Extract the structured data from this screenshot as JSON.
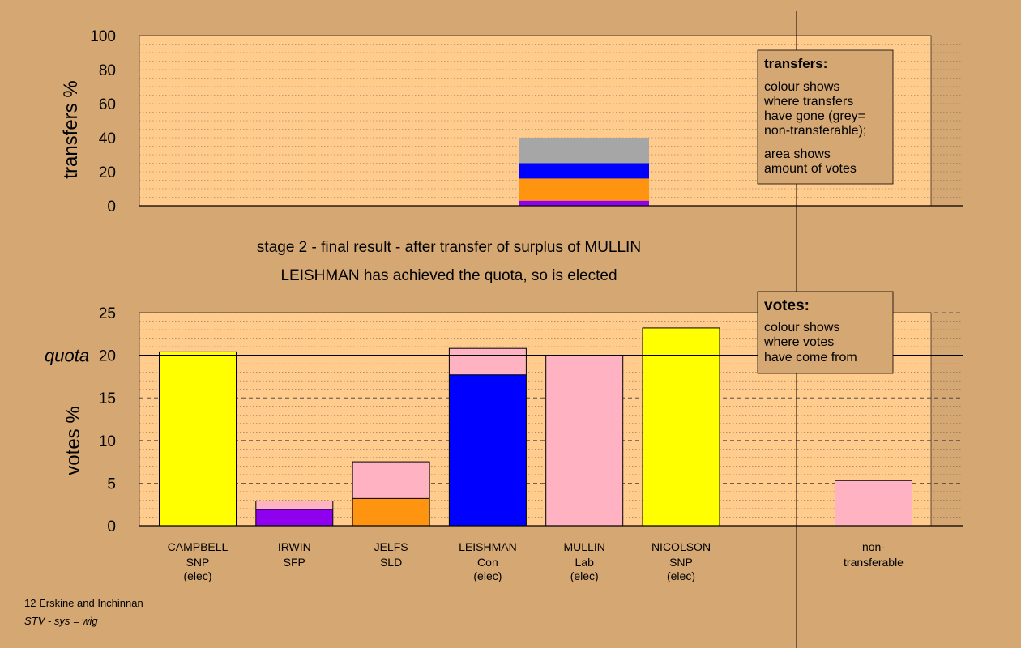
{
  "colors": {
    "background": "#d4a773",
    "plot_bg": "#ffcc8e",
    "yellow": "#ffff00",
    "purple": "#8f00ee",
    "orange": "#ff9410",
    "blue": "#0000ff",
    "pink": "#ffb2c1",
    "grey": "#a6a6a6"
  },
  "chart_data": [
    {
      "type": "bar",
      "name": "transfers",
      "ylabel": "transfers %",
      "ylim": [
        0,
        100
      ],
      "yticks": [
        "0",
        "20",
        "40",
        "60",
        "80",
        "100"
      ],
      "bar_category": "MULLIN",
      "stack": [
        {
          "color": "purple",
          "value": 3
        },
        {
          "color": "orange",
          "value": 13
        },
        {
          "color": "blue",
          "value": 9
        },
        {
          "color": "grey",
          "value": 15
        }
      ],
      "legend": {
        "title": "transfers:",
        "lines1": [
          "colour shows",
          "where transfers",
          "have gone (grey=",
          "non-transferable);"
        ],
        "lines2": [
          "area shows",
          "amount of votes"
        ]
      }
    },
    {
      "type": "bar",
      "name": "votes",
      "ylabel": "votes %",
      "ylim": [
        0,
        25
      ],
      "yticks": [
        "0",
        "5",
        "10",
        "15",
        "20",
        "25"
      ],
      "quota": 20,
      "quota_label": "quota",
      "candidates": [
        {
          "name": "CAMPBELL",
          "party": "SNP",
          "status": "(elec)",
          "segments": [
            {
              "color": "yellow",
              "value": 20.4
            }
          ]
        },
        {
          "name": "IRWIN",
          "party": "SFP",
          "status": "",
          "segments": [
            {
              "color": "purple",
              "value": 1.9
            },
            {
              "color": "pink",
              "value": 1.0
            }
          ]
        },
        {
          "name": "JELFS",
          "party": "SLD",
          "status": "",
          "segments": [
            {
              "color": "orange",
              "value": 3.2
            },
            {
              "color": "pink",
              "value": 4.3
            }
          ]
        },
        {
          "name": "LEISHMAN",
          "party": "Con",
          "status": "(elec)",
          "segments": [
            {
              "color": "blue",
              "value": 17.7
            },
            {
              "color": "pink",
              "value": 3.1
            }
          ]
        },
        {
          "name": "MULLIN",
          "party": "Lab",
          "status": "(elec)",
          "segments": [
            {
              "color": "pink",
              "value": 20.0
            }
          ]
        },
        {
          "name": "NICOLSON",
          "party": "SNP",
          "status": "(elec)",
          "segments": [
            {
              "color": "yellow",
              "value": 23.2
            }
          ]
        }
      ],
      "nontransferable": {
        "label1": "non-",
        "label2": "transferable",
        "segments": [
          {
            "color": "pink",
            "value": 5.3
          }
        ]
      },
      "legend": {
        "title": "votes:",
        "lines": [
          "colour shows",
          "where votes",
          "have come from"
        ]
      }
    }
  ],
  "subtitle1": "stage 2 - final result - after transfer of surplus of MULLIN",
  "subtitle2": "LEISHMAN has achieved the quota, so is elected",
  "footer1": "12 Erskine and Inchinnan",
  "footer2": "STV - sys = wig"
}
